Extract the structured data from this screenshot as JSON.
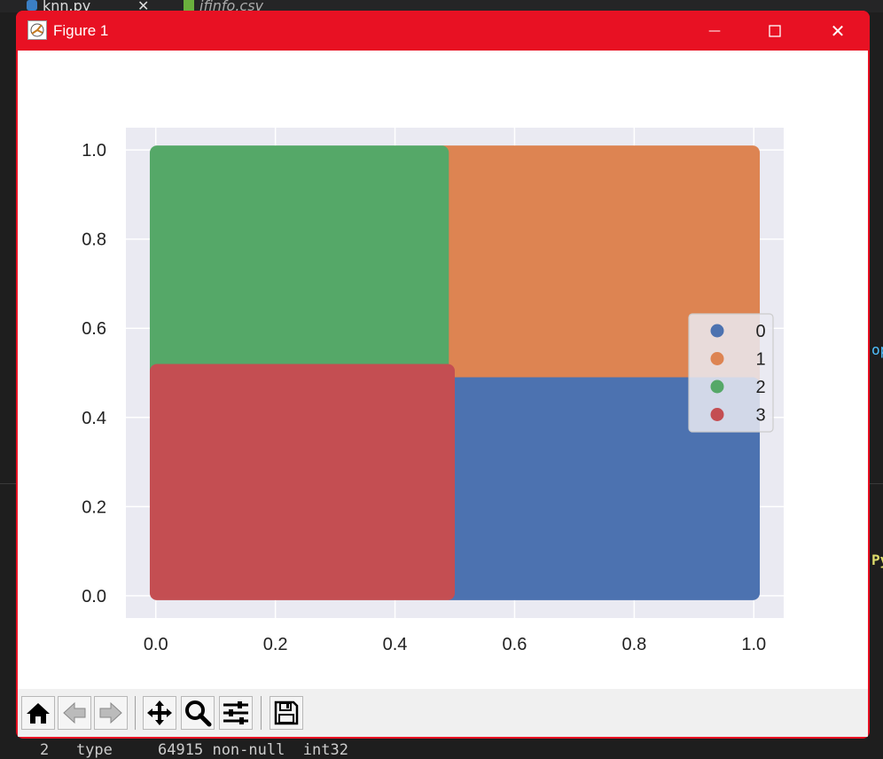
{
  "ide": {
    "tabs": [
      {
        "label": "knn.py",
        "close": "✕"
      },
      {
        "label": "ifinfo.csv"
      }
    ],
    "right_text_a": "op",
    "right_text_b": "Py",
    "terminal_line": "2   type     64915 non-null  int32"
  },
  "window": {
    "title": "Figure 1",
    "minimize": "—",
    "maximize": "☐",
    "close": "✕"
  },
  "toolbar": {
    "buttons": [
      "home-icon",
      "back-icon",
      "forward-icon",
      "pan-icon",
      "zoom-icon",
      "configure-subplots-icon",
      "save-icon"
    ]
  },
  "colors": {
    "titlebar": "#e81123",
    "plot_bg": "#eaeaf2",
    "cluster_0": "#4c72b0",
    "cluster_1": "#dd8452",
    "cluster_2": "#55a868",
    "cluster_3": "#c44e52"
  },
  "chart_data": {
    "type": "scatter",
    "title": "",
    "xlabel": "",
    "ylabel": "",
    "xlim": [
      -0.05,
      1.05
    ],
    "ylim": [
      -0.05,
      1.05
    ],
    "xticks": [
      "0.0",
      "0.2",
      "0.4",
      "0.6",
      "0.8",
      "1.0"
    ],
    "yticks": [
      "0.0",
      "0.2",
      "0.4",
      "0.6",
      "0.8",
      "1.0"
    ],
    "grid": true,
    "legend_position": "center-right",
    "series": [
      {
        "name": "0",
        "color": "#4c72b0",
        "region": {
          "x": [
            0.49,
            1.0
          ],
          "y": [
            0.0,
            0.48
          ]
        }
      },
      {
        "name": "1",
        "color": "#dd8452",
        "region": {
          "x": [
            0.48,
            1.0
          ],
          "y": [
            0.48,
            1.0
          ]
        }
      },
      {
        "name": "2",
        "color": "#55a868",
        "region": {
          "x": [
            0.0,
            0.48
          ],
          "y": [
            0.5,
            1.0
          ]
        }
      },
      {
        "name": "3",
        "color": "#c44e52",
        "region": {
          "x": [
            0.0,
            0.49
          ],
          "y": [
            0.0,
            0.51
          ]
        }
      }
    ]
  }
}
